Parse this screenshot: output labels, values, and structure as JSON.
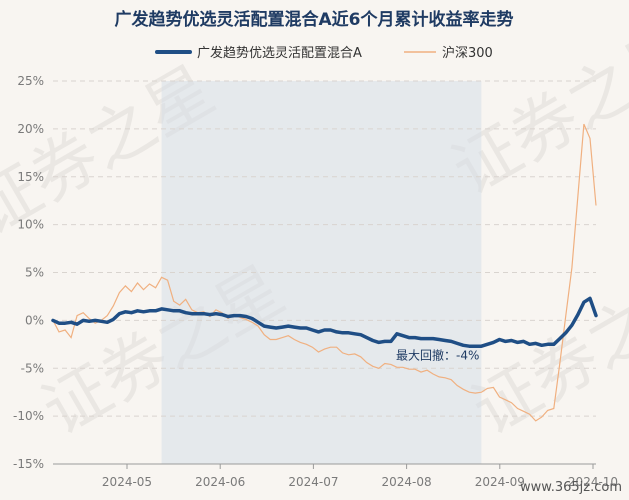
{
  "chart_data": {
    "type": "line",
    "title": "广发趋势优选灵活配置混合A近6个月累计收益率走势",
    "ylim": [
      -15,
      25
    ],
    "yticks": [
      25,
      20,
      15,
      10,
      5,
      0,
      -5,
      -10,
      -15
    ],
    "ytick_labels": [
      "25%",
      "20%",
      "15%",
      "10%",
      "5%",
      "0%",
      "-5%",
      "-10%",
      "-15%"
    ],
    "xticks": [
      "2024-05",
      "2024-06",
      "2024-07",
      "2024-08",
      "2024-09",
      "2024-10"
    ],
    "grid": true,
    "legend_position": "top",
    "series": [
      {
        "name": "广发趋势优选灵活配置混合A",
        "color": "#1f4e85",
        "values": [
          0.0,
          -0.3,
          -0.3,
          -0.2,
          -0.4,
          0.0,
          -0.1,
          0.0,
          -0.1,
          -0.2,
          0.1,
          0.7,
          0.9,
          0.8,
          1.0,
          0.9,
          1.0,
          1.0,
          1.2,
          1.1,
          1.0,
          1.0,
          0.8,
          0.7,
          0.7,
          0.7,
          0.6,
          0.7,
          0.6,
          0.4,
          0.5,
          0.5,
          0.4,
          0.2,
          -0.2,
          -0.6,
          -0.7,
          -0.8,
          -0.7,
          -0.6,
          -0.7,
          -0.8,
          -0.8,
          -1.0,
          -1.2,
          -1.0,
          -1.0,
          -1.2,
          -1.3,
          -1.3,
          -1.4,
          -1.5,
          -1.8,
          -2.1,
          -2.3,
          -2.2,
          -2.2,
          -1.4,
          -1.6,
          -1.8,
          -1.8,
          -1.9,
          -1.9,
          -1.9,
          -2.0,
          -2.1,
          -2.2,
          -2.4,
          -2.6,
          -2.7,
          -2.7,
          -2.7,
          -2.5,
          -2.3,
          -2.0,
          -2.2,
          -2.1,
          -2.3,
          -2.2,
          -2.5,
          -2.4,
          -2.6,
          -2.5,
          -2.5,
          -1.9,
          -1.3,
          -0.5,
          0.6,
          1.9,
          2.3,
          0.5
        ]
      },
      {
        "name": "沪深300",
        "color": "#f0b080",
        "values": [
          0.0,
          -1.2,
          -1.0,
          -1.8,
          0.5,
          0.8,
          0.2,
          -0.3,
          0.0,
          0.5,
          1.5,
          2.9,
          3.6,
          3.0,
          3.9,
          3.2,
          3.8,
          3.4,
          4.5,
          4.2,
          2.0,
          1.6,
          2.2,
          1.1,
          0.8,
          0.9,
          0.4,
          1.1,
          0.8,
          0.2,
          0.6,
          0.3,
          0.1,
          -0.2,
          -0.6,
          -1.5,
          -2.0,
          -2.0,
          -1.8,
          -1.6,
          -2.0,
          -2.3,
          -2.5,
          -2.8,
          -3.3,
          -3.0,
          -2.8,
          -2.8,
          -3.4,
          -3.6,
          -3.5,
          -3.8,
          -4.4,
          -4.8,
          -5.0,
          -4.5,
          -4.6,
          -4.9,
          -4.9,
          -5.1,
          -5.1,
          -5.4,
          -5.2,
          -5.6,
          -5.9,
          -6.0,
          -6.2,
          -6.8,
          -7.2,
          -7.5,
          -7.6,
          -7.5,
          -7.1,
          -7.0,
          -8.0,
          -8.3,
          -8.6,
          -9.2,
          -9.5,
          -9.8,
          -10.5,
          -10.1,
          -9.4,
          -9.2,
          -4.5,
          0.5,
          5.5,
          13.0,
          20.5,
          19.0,
          12.0
        ]
      }
    ],
    "drawdown": {
      "label": "最大回撤：-4%",
      "start_index": 18,
      "end_index": 71,
      "color": "#d5dee7"
    },
    "watermark": "证券之星",
    "site_label": "www.365jz.com"
  }
}
